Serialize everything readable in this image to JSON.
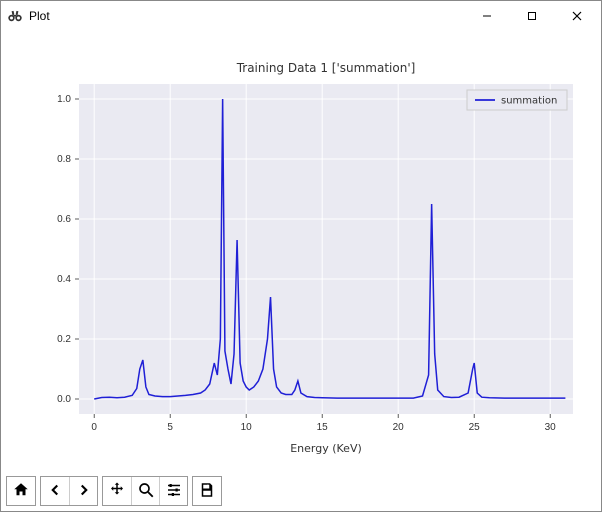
{
  "window": {
    "title": "Plot",
    "icon_name": "binoculars-icon"
  },
  "chart": {
    "type": "line",
    "title": "Training Data 1 ['summation']",
    "title_fontsize": 12,
    "xlabel": "Energy (KeV)",
    "label_fontsize": 11,
    "tick_fontsize": 10,
    "xlim": [
      -1,
      31.5
    ],
    "ylim": [
      -0.05,
      1.05
    ],
    "xticks": [
      0,
      5,
      10,
      15,
      20,
      25,
      30
    ],
    "yticks": [
      0.0,
      0.2,
      0.4,
      0.6,
      0.8,
      1.0
    ],
    "background_color": "#eaeaf2",
    "figure_background": "#ffffff",
    "grid_color": "#ffffff",
    "series": [
      {
        "name": "summation",
        "color": "#1f1fd6",
        "line_width": 1.5,
        "x": [
          0,
          0.5,
          1,
          1.5,
          2,
          2.5,
          2.8,
          3.0,
          3.2,
          3.4,
          3.6,
          4,
          4.5,
          5,
          5.5,
          6,
          6.5,
          7,
          7.3,
          7.6,
          7.9,
          8.1,
          8.3,
          8.45,
          8.6,
          8.8,
          9.0,
          9.2,
          9.4,
          9.6,
          9.8,
          10.0,
          10.2,
          10.5,
          10.8,
          11.1,
          11.4,
          11.6,
          11.8,
          12.0,
          12.3,
          12.6,
          13.0,
          13.2,
          13.4,
          13.6,
          14.0,
          14.5,
          15,
          16,
          17,
          18,
          19,
          20,
          21,
          21.6,
          22.0,
          22.2,
          22.4,
          22.6,
          23.0,
          23.5,
          24.0,
          24.6,
          24.9,
          25.0,
          25.2,
          25.5,
          26,
          27,
          28,
          29,
          30,
          31
        ],
        "y": [
          0.0,
          0.005,
          0.006,
          0.004,
          0.006,
          0.012,
          0.035,
          0.1,
          0.13,
          0.04,
          0.015,
          0.01,
          0.008,
          0.008,
          0.01,
          0.012,
          0.015,
          0.02,
          0.03,
          0.05,
          0.12,
          0.08,
          0.2,
          1.0,
          0.16,
          0.1,
          0.05,
          0.15,
          0.53,
          0.12,
          0.06,
          0.04,
          0.03,
          0.04,
          0.06,
          0.1,
          0.2,
          0.34,
          0.1,
          0.04,
          0.02,
          0.015,
          0.015,
          0.03,
          0.06,
          0.02,
          0.008,
          0.005,
          0.004,
          0.003,
          0.003,
          0.003,
          0.003,
          0.003,
          0.003,
          0.01,
          0.08,
          0.65,
          0.15,
          0.03,
          0.008,
          0.005,
          0.006,
          0.02,
          0.1,
          0.12,
          0.02,
          0.006,
          0.004,
          0.003,
          0.003,
          0.003,
          0.003,
          0.003
        ]
      }
    ],
    "legend": {
      "position": "upper-right",
      "items": [
        "summation"
      ],
      "frame_color": "#cccccc",
      "background": "#eaeaf2"
    }
  },
  "toolbar": {
    "groups": [
      [
        "home"
      ],
      [
        "back",
        "forward"
      ],
      [
        "pan",
        "zoom",
        "configure"
      ],
      [
        "save"
      ]
    ],
    "icons": {
      "home": "home-icon",
      "back": "arrow-left-icon",
      "forward": "arrow-right-icon",
      "pan": "move-icon",
      "zoom": "zoom-icon",
      "configure": "sliders-icon",
      "save": "save-icon"
    }
  }
}
